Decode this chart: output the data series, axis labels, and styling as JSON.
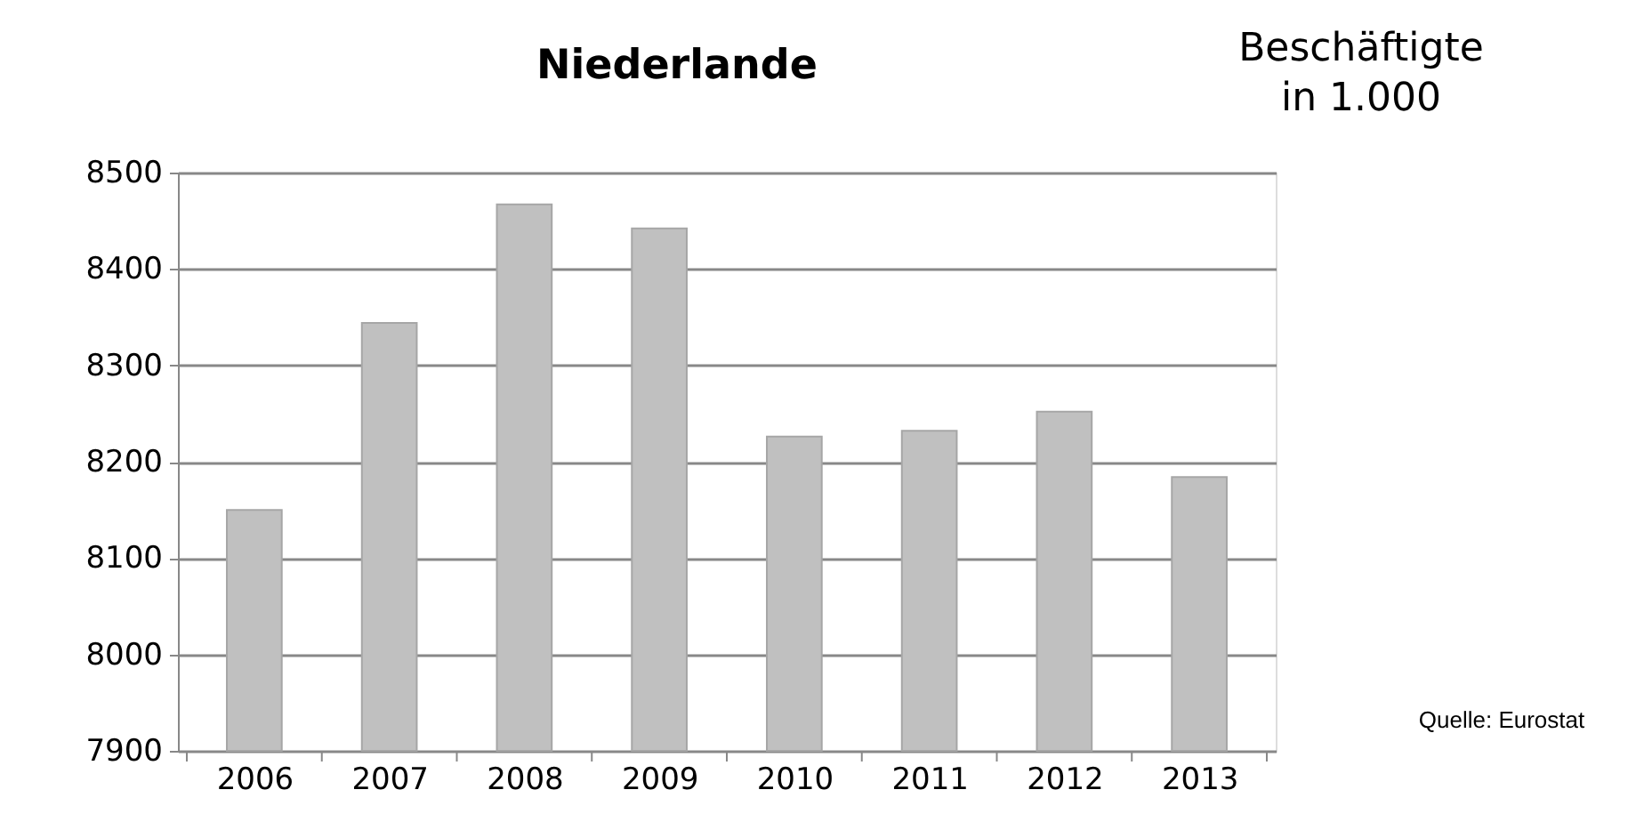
{
  "chart_data": {
    "type": "bar",
    "title": "Niederlande",
    "categories": [
      "2006",
      "2007",
      "2008",
      "2009",
      "2010",
      "2011",
      "2012",
      "2013"
    ],
    "values": [
      8150,
      8344,
      8467,
      8442,
      8226,
      8232,
      8252,
      8184
    ],
    "color": "#c0c0c0",
    "ylim": [
      7900,
      8500
    ],
    "yticks": [
      7900,
      8000,
      8100,
      8200,
      8300,
      8400,
      8500
    ],
    "grid": "y",
    "annotations": [
      "Beschäftigte in 1.000",
      "Quelle: Eurostat"
    ]
  }
}
